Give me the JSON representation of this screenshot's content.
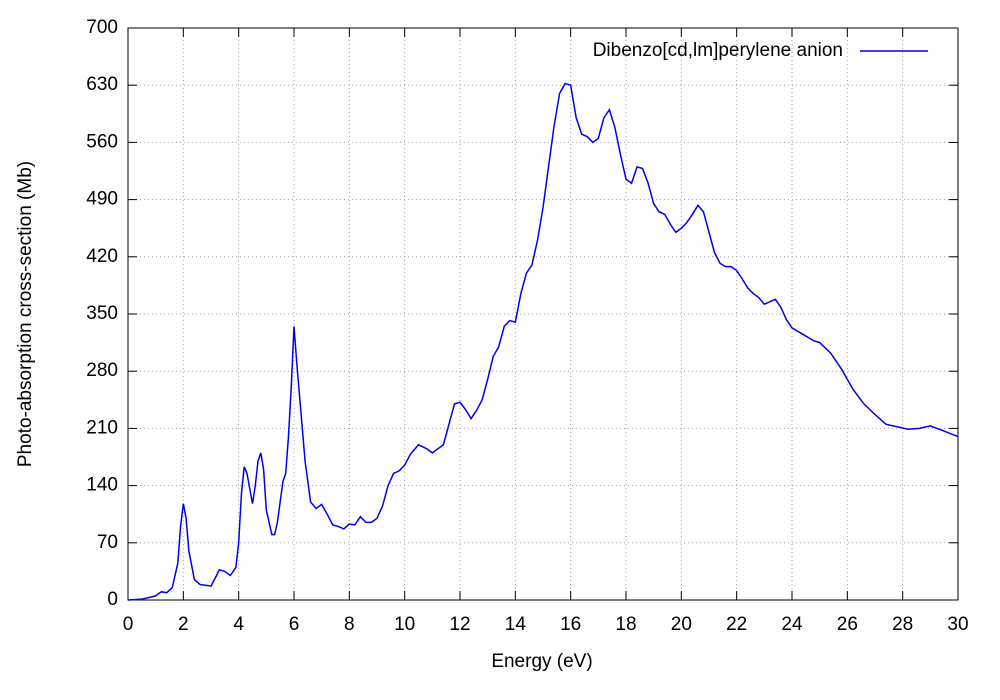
{
  "chart_data": {
    "type": "line",
    "xlabel": "Energy (eV)",
    "ylabel": "Photo-absorption cross-section (Mb)",
    "x": [
      0,
      0.5,
      1.0,
      1.2,
      1.4,
      1.6,
      1.8,
      1.9,
      2.0,
      2.1,
      2.2,
      2.4,
      2.6,
      2.8,
      3.0,
      3.2,
      3.3,
      3.5,
      3.7,
      3.9,
      4.0,
      4.1,
      4.2,
      4.3,
      4.5,
      4.6,
      4.7,
      4.8,
      4.9,
      5.0,
      5.2,
      5.3,
      5.4,
      5.6,
      5.7,
      5.8,
      5.9,
      6.0,
      6.1,
      6.2,
      6.4,
      6.6,
      6.8,
      7.0,
      7.2,
      7.4,
      7.6,
      7.8,
      8.0,
      8.2,
      8.4,
      8.6,
      8.8,
      9.0,
      9.2,
      9.4,
      9.6,
      9.8,
      10.0,
      10.2,
      10.5,
      10.8,
      11.0,
      11.2,
      11.4,
      11.6,
      11.8,
      12.0,
      12.2,
      12.4,
      12.6,
      12.8,
      13.0,
      13.2,
      13.4,
      13.6,
      13.8,
      14.0,
      14.2,
      14.4,
      14.6,
      14.8,
      15.0,
      15.2,
      15.4,
      15.6,
      15.8,
      16.0,
      16.2,
      16.4,
      16.6,
      16.8,
      17.0,
      17.2,
      17.4,
      17.6,
      17.8,
      18.0,
      18.2,
      18.4,
      18.6,
      18.8,
      19.0,
      19.2,
      19.4,
      19.6,
      19.8,
      20.0,
      20.2,
      20.4,
      20.6,
      20.8,
      21.0,
      21.2,
      21.4,
      21.6,
      21.8,
      22.0,
      22.2,
      22.4,
      22.6,
      22.8,
      23.0,
      23.2,
      23.4,
      23.6,
      23.8,
      24.0,
      24.4,
      24.8,
      25.0,
      25.4,
      25.8,
      26.2,
      26.6,
      27.0,
      27.4,
      27.8,
      28.2,
      28.6,
      29.0,
      29.4,
      30.0
    ],
    "series": [
      {
        "name": "Dibenzo[cd,lm]perylene anion",
        "color": "#0000ee",
        "values": [
          0,
          1,
          5,
          10,
          9,
          15,
          45,
          90,
          118,
          100,
          60,
          25,
          19,
          18,
          17,
          30,
          37,
          35,
          30,
          40,
          70,
          130,
          163,
          155,
          118,
          140,
          170,
          180,
          160,
          110,
          80,
          80,
          95,
          145,
          155,
          200,
          260,
          335,
          290,
          250,
          170,
          120,
          112,
          117,
          105,
          92,
          90,
          87,
          93,
          92,
          102,
          95,
          95,
          100,
          115,
          140,
          155,
          158,
          165,
          178,
          190,
          185,
          180,
          185,
          190,
          215,
          240,
          242,
          233,
          222,
          232,
          245,
          270,
          298,
          310,
          335,
          342,
          340,
          375,
          400,
          410,
          440,
          480,
          530,
          580,
          620,
          632,
          630,
          590,
          570,
          567,
          560,
          565,
          590,
          600,
          578,
          545,
          515,
          510,
          530,
          528,
          510,
          485,
          475,
          472,
          460,
          450,
          455,
          462,
          472,
          483,
          475,
          450,
          425,
          412,
          408,
          408,
          403,
          393,
          382,
          375,
          370,
          362,
          365,
          368,
          358,
          343,
          333,
          325,
          317,
          315,
          302,
          282,
          258,
          240,
          227,
          215,
          212,
          209,
          210,
          213,
          208,
          200
        ]
      }
    ],
    "xlim": [
      0,
      30
    ],
    "ylim": [
      0,
      700
    ],
    "xticks": [
      0,
      2,
      4,
      6,
      8,
      10,
      12,
      14,
      16,
      18,
      20,
      22,
      24,
      26,
      28,
      30
    ],
    "yticks": [
      0,
      70,
      140,
      210,
      280,
      350,
      420,
      490,
      560,
      630,
      700
    ],
    "grid": true,
    "legend": "top-right"
  }
}
